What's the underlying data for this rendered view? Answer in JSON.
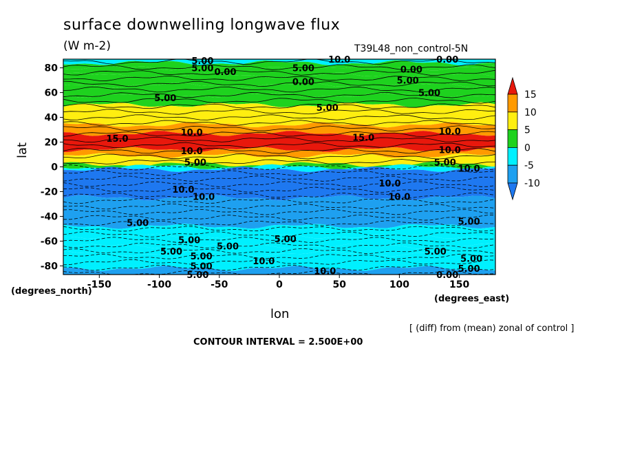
{
  "title": "surface downwelling longwave flux",
  "units": "(W m-2)",
  "run_label": "T39L48_non_control-5N",
  "note": "[ (diff) from (mean) zonal of control ]",
  "contour_interval": "CONTOUR INTERVAL = 2.500E+00",
  "chart_data": {
    "type": "heatmap",
    "xlabel": "lon",
    "ylabel": "lat",
    "x_units": "(degrees_east)",
    "y_units": "(degrees_north)",
    "xlim": [
      -180,
      180
    ],
    "ylim": [
      -87,
      87
    ],
    "x_ticks": [
      -150,
      -100,
      -50,
      0,
      50,
      100,
      150
    ],
    "y_ticks": [
      -80,
      -60,
      -40,
      -20,
      0,
      20,
      40,
      60,
      80
    ],
    "colorbar": {
      "tick_labels": [
        15,
        10,
        5,
        0,
        -5,
        -10
      ],
      "levels": [
        {
          "range": [
            15,
            20
          ],
          "color": "#e8180c"
        },
        {
          "range": [
            10,
            15
          ],
          "color": "#ff9a00"
        },
        {
          "range": [
            5,
            10
          ],
          "color": "#ffee10"
        },
        {
          "range": [
            0,
            5
          ],
          "color": "#1ed21e"
        },
        {
          "range": [
            -5,
            0
          ],
          "color": "#00f0ff"
        },
        {
          "range": [
            -10,
            -5
          ],
          "color": "#1ea0f0"
        },
        {
          "range": [
            -15,
            -10
          ],
          "color": "#1e78f0"
        }
      ]
    },
    "zonal_bands": [
      {
        "lat": [
          84,
          87
        ],
        "value": -3
      },
      {
        "lat": [
          80,
          84
        ],
        "value": 2
      },
      {
        "lat": [
          74,
          80
        ],
        "value": 4
      },
      {
        "lat": [
          66,
          74
        ],
        "value": 2
      },
      {
        "lat": [
          58,
          66
        ],
        "value": 3
      },
      {
        "lat": [
          50,
          58
        ],
        "value": 4
      },
      {
        "lat": [
          34,
          50
        ],
        "value": 7
      },
      {
        "lat": [
          27,
          34
        ],
        "value": 10
      },
      {
        "lat": [
          14,
          27
        ],
        "value": 16
      },
      {
        "lat": [
          9,
          14
        ],
        "value": 11
      },
      {
        "lat": [
          2,
          9
        ],
        "value": 6
      },
      {
        "lat": [
          0,
          2
        ],
        "value": 2
      },
      {
        "lat": [
          -2,
          0
        ],
        "value": -3
      },
      {
        "lat": [
          -25,
          -2
        ],
        "value": -11
      },
      {
        "lat": [
          -48,
          -25
        ],
        "value": -7
      },
      {
        "lat": [
          -56,
          -48
        ],
        "value": -4
      },
      {
        "lat": [
          -64,
          -56
        ],
        "value": -3
      },
      {
        "lat": [
          -70,
          -64
        ],
        "value": -4
      },
      {
        "lat": [
          -82,
          -70
        ],
        "value": -2
      },
      {
        "lat": [
          -87,
          -82
        ],
        "value": -6
      }
    ],
    "contour_labels": [
      {
        "text": "5.00",
        "lon": -64,
        "lat": 86
      },
      {
        "text": "5.00",
        "lon": -64,
        "lat": 80
      },
      {
        "text": "0.00",
        "lon": -45,
        "lat": 77
      },
      {
        "text": "10.0",
        "lon": 50,
        "lat": 87
      },
      {
        "text": "5.00",
        "lon": 20,
        "lat": 80
      },
      {
        "text": "0.00",
        "lon": 20,
        "lat": 69
      },
      {
        "text": "0.00",
        "lon": 110,
        "lat": 79
      },
      {
        "text": "0.00",
        "lon": 140,
        "lat": 87
      },
      {
        "text": "5.00",
        "lon": 107,
        "lat": 70
      },
      {
        "text": "5.00",
        "lon": 125,
        "lat": 60
      },
      {
        "text": "5.00",
        "lon": -95,
        "lat": 56
      },
      {
        "text": "5.00",
        "lon": 40,
        "lat": 48
      },
      {
        "text": "15.0",
        "lon": -135,
        "lat": 23
      },
      {
        "text": "10.0",
        "lon": -73,
        "lat": 28
      },
      {
        "text": "15.0",
        "lon": 70,
        "lat": 24
      },
      {
        "text": "10.0",
        "lon": 142,
        "lat": 29
      },
      {
        "text": "10.0",
        "lon": -73,
        "lat": 13
      },
      {
        "text": "10.0",
        "lon": 142,
        "lat": 14
      },
      {
        "text": "5.00",
        "lon": -70,
        "lat": 4
      },
      {
        "text": "5.00",
        "lon": 138,
        "lat": 4
      },
      {
        "text": "10.0",
        "lon": 158,
        "lat": -1
      },
      {
        "text": "10.0",
        "lon": -80,
        "lat": -18
      },
      {
        "text": "10.0",
        "lon": -63,
        "lat": -24
      },
      {
        "text": "10.0",
        "lon": 92,
        "lat": -13
      },
      {
        "text": "10.0",
        "lon": 100,
        "lat": -24
      },
      {
        "text": "5.00",
        "lon": -118,
        "lat": -45
      },
      {
        "text": "5.00",
        "lon": 158,
        "lat": -44
      },
      {
        "text": "5.00",
        "lon": -75,
        "lat": -59
      },
      {
        "text": "5.00",
        "lon": 5,
        "lat": -58
      },
      {
        "text": "5.00",
        "lon": -43,
        "lat": -64
      },
      {
        "text": "5.00",
        "lon": -90,
        "lat": -68
      },
      {
        "text": "5.00",
        "lon": 130,
        "lat": -68
      },
      {
        "text": "5.00",
        "lon": -65,
        "lat": -72
      },
      {
        "text": "10.0",
        "lon": -13,
        "lat": -76
      },
      {
        "text": "10.0",
        "lon": 38,
        "lat": -84
      },
      {
        "text": "5.00",
        "lon": 160,
        "lat": -74
      },
      {
        "text": "5.00",
        "lon": -65,
        "lat": -80
      },
      {
        "text": "5.00",
        "lon": 158,
        "lat": -82
      },
      {
        "text": "5.00",
        "lon": -68,
        "lat": -87
      },
      {
        "text": "0.00",
        "lon": 140,
        "lat": -87
      }
    ]
  }
}
